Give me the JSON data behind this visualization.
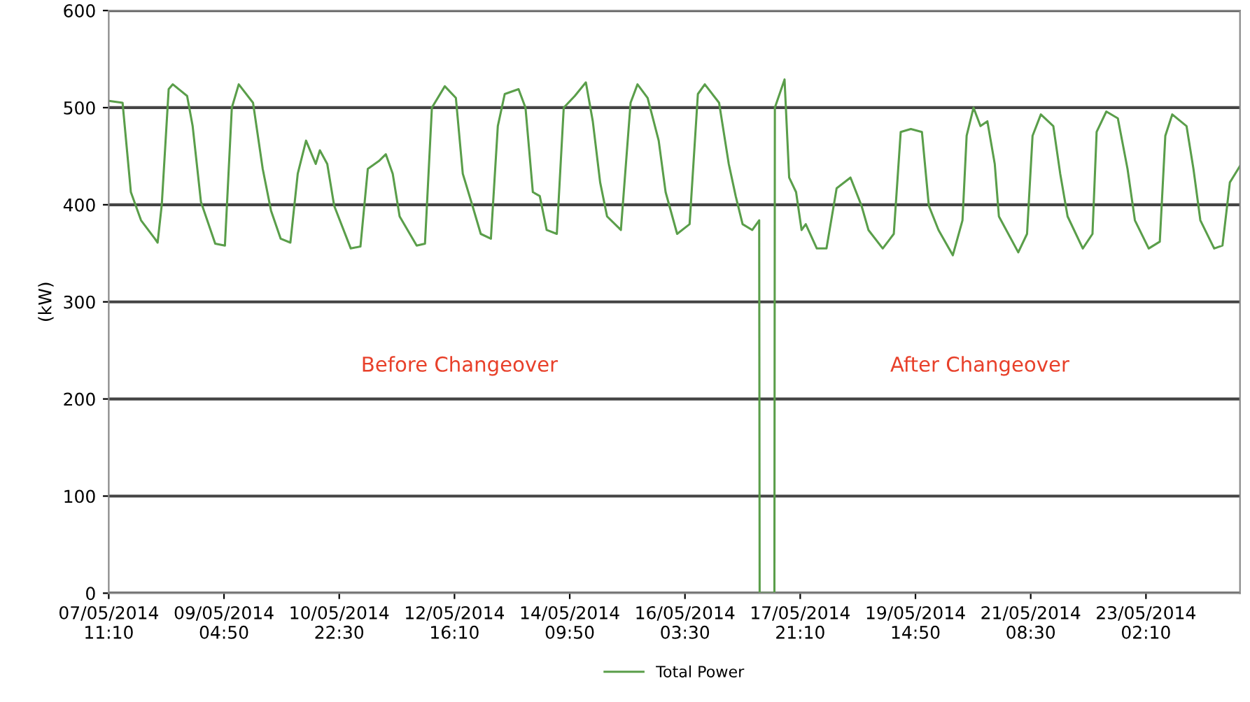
{
  "chart_data": {
    "type": "line",
    "ylabel": "(kW)",
    "annotations": [
      "Before Changeover",
      "After Changeover"
    ],
    "x": [
      "2014-05-07T11:10",
      "2014-05-07T16:10",
      "2014-05-07T19:10",
      "2014-05-07T22:50",
      "2014-05-08T03:50",
      "2014-05-08T04:50",
      "2014-05-08T06:20",
      "2014-05-08T08:50",
      "2014-05-08T10:20",
      "2014-05-08T15:30",
      "2014-05-08T17:30",
      "2014-05-08T20:30",
      "2014-05-09T01:40",
      "2014-05-09T05:10",
      "2014-05-09T07:40",
      "2014-05-09T10:10",
      "2014-05-09T15:20",
      "2014-05-09T18:50",
      "2014-05-09T21:50",
      "2014-05-10T01:20",
      "2014-05-10T04:50",
      "2014-05-10T07:30",
      "2014-05-10T10:30",
      "2014-05-10T14:00",
      "2014-05-10T15:30",
      "2014-05-10T18:10",
      "2014-05-10T20:40",
      "2014-05-11T02:40",
      "2014-05-11T06:10",
      "2014-05-11T08:50",
      "2014-05-11T12:50",
      "2014-05-11T15:20",
      "2014-05-11T17:50",
      "2014-05-11T20:20",
      "2014-05-12T02:30",
      "2014-05-12T05:30",
      "2014-05-12T08:00",
      "2014-05-12T12:40",
      "2014-05-12T16:40",
      "2014-05-12T19:10",
      "2014-05-12T22:40",
      "2014-05-13T01:40",
      "2014-05-13T05:20",
      "2014-05-13T07:50",
      "2014-05-13T10:20",
      "2014-05-13T15:20",
      "2014-05-13T17:50",
      "2014-05-13T20:30",
      "2014-05-13T23:00",
      "2014-05-14T01:30",
      "2014-05-14T05:10",
      "2014-05-14T07:40",
      "2014-05-14T11:40",
      "2014-05-14T15:40",
      "2014-05-14T18:10",
      "2014-05-14T20:50",
      "2014-05-14T23:20",
      "2014-05-15T04:20",
      "2014-05-15T07:50",
      "2014-05-15T10:20",
      "2014-05-15T14:00",
      "2014-05-15T18:00",
      "2014-05-15T20:30",
      "2014-05-16T00:40",
      "2014-05-16T05:10",
      "2014-05-16T08:10",
      "2014-05-16T10:40",
      "2014-05-16T15:50",
      "2014-05-16T19:20",
      "2014-05-16T21:50",
      "2014-05-17T00:20",
      "2014-05-17T03:50",
      "2014-05-17T06:20",
      "2014-05-17T06:30",
      "2014-05-17T11:50",
      "2014-05-17T12:00",
      "2014-05-17T15:30",
      "2014-05-17T17:10",
      "2014-05-17T19:40",
      "2014-05-17T21:40",
      "2014-05-17T23:10",
      "2014-05-18T03:10",
      "2014-05-18T06:40",
      "2014-05-18T10:20",
      "2014-05-18T15:20",
      "2014-05-18T19:20",
      "2014-05-18T21:50",
      "2014-05-19T03:00",
      "2014-05-19T07:00",
      "2014-05-19T09:30",
      "2014-05-19T13:10",
      "2014-05-19T17:10",
      "2014-05-19T19:40",
      "2014-05-19T23:10",
      "2014-05-20T04:20",
      "2014-05-20T07:50",
      "2014-05-20T09:20",
      "2014-05-20T11:50",
      "2014-05-20T14:20",
      "2014-05-20T16:50",
      "2014-05-20T19:30",
      "2014-05-20T21:00",
      "2014-05-21T04:00",
      "2014-05-21T07:10",
      "2014-05-21T09:10",
      "2014-05-21T12:10",
      "2014-05-21T16:40",
      "2014-05-21T19:10",
      "2014-05-21T21:50",
      "2014-05-22T03:20",
      "2014-05-22T06:50",
      "2014-05-22T08:20",
      "2014-05-22T11:50",
      "2014-05-22T16:00",
      "2014-05-22T19:30",
      "2014-05-22T22:10",
      "2014-05-23T03:10",
      "2014-05-23T07:10",
      "2014-05-23T09:10",
      "2014-05-23T11:40",
      "2014-05-23T16:50",
      "2014-05-23T19:20",
      "2014-05-23T21:50",
      "2014-05-24T02:50",
      "2014-05-24T05:50",
      "2014-05-24T08:30",
      "2014-05-24T12:10"
    ],
    "series": [
      {
        "name": "Total Power",
        "color": "#5a9e4a",
        "values": [
          507,
          505,
          413,
          384,
          365,
          361,
          400,
          519,
          524,
          512,
          481,
          403,
          360,
          358,
          500,
          524,
          505,
          437,
          394,
          365,
          361,
          432,
          466,
          442,
          456,
          442,
          399,
          355,
          357,
          437,
          445,
          452,
          432,
          388,
          358,
          360,
          500,
          522,
          510,
          432,
          399,
          370,
          365,
          481,
          514,
          519,
          500,
          413,
          409,
          374,
          370,
          500,
          512,
          526,
          486,
          423,
          388,
          374,
          505,
          524,
          510,
          466,
          413,
          370,
          380,
          514,
          524,
          505,
          442,
          409,
          380,
          374,
          384,
          0,
          0,
          500,
          529,
          428,
          413,
          374,
          380,
          355,
          355,
          417,
          428,
          399,
          374,
          355,
          370,
          475,
          478,
          475,
          399,
          374,
          348,
          384,
          471,
          500,
          481,
          486,
          442,
          388,
          351,
          370,
          471,
          493,
          481,
          432,
          388,
          355,
          370,
          475,
          496,
          489,
          437,
          384,
          355,
          362,
          471,
          493,
          481,
          437,
          384,
          355,
          358,
          423,
          440
        ]
      }
    ],
    "xlim": [
      "2014-05-07T11:10",
      "2014-05-24T12:10"
    ],
    "xticks": [
      {
        "value": "2014-05-07T11:10",
        "label": "07/05/2014\n11:10"
      },
      {
        "value": "2014-05-09T04:50",
        "label": "09/05/2014\n04:50"
      },
      {
        "value": "2014-05-10T22:30",
        "label": "10/05/2014\n22:30"
      },
      {
        "value": "2014-05-12T16:10",
        "label": "12/05/2014\n16:10"
      },
      {
        "value": "2014-05-14T09:50",
        "label": "14/05/2014\n09:50"
      },
      {
        "value": "2014-05-16T03:30",
        "label": "16/05/2014\n03:30"
      },
      {
        "value": "2014-05-17T21:10",
        "label": "17/05/2014\n21:10"
      },
      {
        "value": "2014-05-19T14:50",
        "label": "19/05/2014\n14:50"
      },
      {
        "value": "2014-05-21T08:30",
        "label": "21/05/2014\n08:30"
      },
      {
        "value": "2014-05-23T02:10",
        "label": "23/05/2014\n02:10"
      }
    ],
    "ylim": [
      0,
      600
    ],
    "yticks": [
      0,
      100,
      200,
      300,
      400,
      500,
      600
    ],
    "grid": "y",
    "legend": "bottom",
    "marker": "none",
    "line_style": "solid"
  }
}
